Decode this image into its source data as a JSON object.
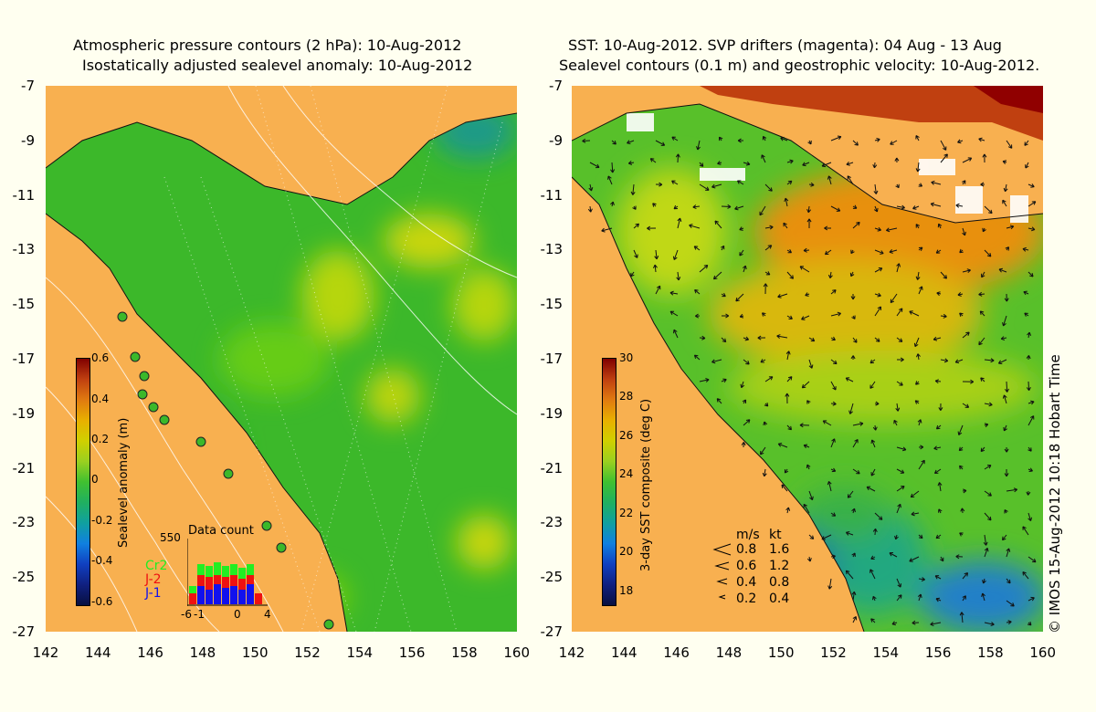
{
  "left_panel": {
    "title_line1": "Atmospheric pressure contours (2 hPa): 10-Aug-2012",
    "title_line2": "Isostatically adjusted sealevel anomaly: 10-Aug-2012",
    "colorbar_label": "Sealevel anomaly (m)",
    "colorbar_ticks": [
      "0.6",
      "0.4",
      "0.2",
      "0",
      "-0.2",
      "-0.4",
      "-0.6"
    ],
    "inset": {
      "title": "Data count",
      "max_label": "550",
      "series": [
        "Cr2",
        "J-2",
        "J-1"
      ],
      "series_colors": [
        "#22ee22",
        "#ee1111",
        "#1111ee"
      ],
      "x_ticks": [
        "-6",
        "-1",
        "0",
        "4"
      ]
    }
  },
  "right_panel": {
    "title_line1": "SST: 10-Aug-2012. SVP drifters (magenta): 04 Aug - 13 Aug",
    "title_line2": "Sealevel contours (0.1 m) and geostrophic velocity: 10-Aug-2012.",
    "colorbar_label": "3-day SST composite (deg C)",
    "colorbar_ticks": [
      "30",
      "28",
      "26",
      "24",
      "22",
      "20",
      "18"
    ],
    "velocity_legend": {
      "header_ms": "m/s",
      "header_kt": "kt",
      "rows": [
        {
          "ms": "0.8",
          "kt": "1.6"
        },
        {
          "ms": "0.6",
          "kt": "1.2"
        },
        {
          "ms": "0.4",
          "kt": "0.8"
        },
        {
          "ms": "0.2",
          "kt": "0.4"
        }
      ]
    }
  },
  "y_ticks": [
    "-7",
    "-9",
    "-11",
    "-13",
    "-15",
    "-17",
    "-19",
    "-21",
    "-23",
    "-25",
    "-27"
  ],
  "x_ticks": [
    "142",
    "144",
    "146",
    "148",
    "150",
    "152",
    "154",
    "156",
    "158",
    "160"
  ],
  "credit": "© IMOS 15-Aug-2012 10:18 Hobart Time",
  "colors": {
    "land": "#f8b050",
    "background": "#fffff0"
  }
}
